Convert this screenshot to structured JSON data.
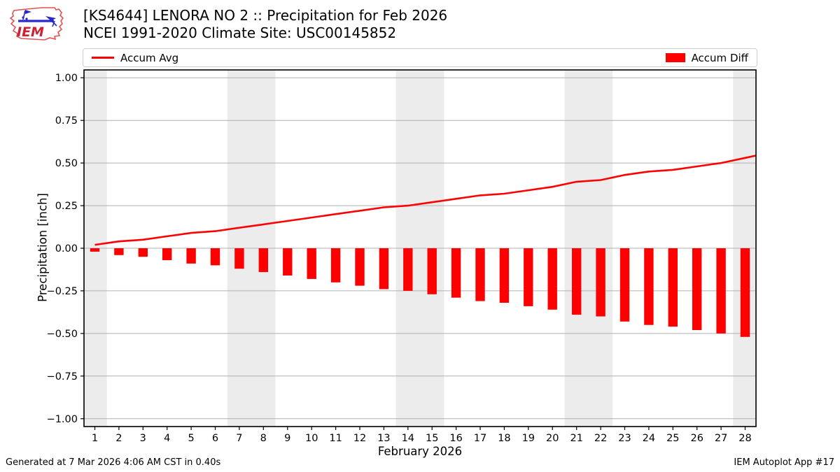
{
  "header": {
    "logo_text": "IEM",
    "title_line1": "[KS4644] LENORA NO 2 :: Precipitation for Feb 2026",
    "title_line2": "NCEI 1991-2020 Climate Site: USC00145852"
  },
  "footer": {
    "generated": "Generated at 7 Mar 2026 4:06 AM CST in 0.40s",
    "app": "IEM Autoplot App #17"
  },
  "colors": {
    "accent_red": "#ff0000",
    "weekend_band": "#ececec",
    "gridline": "#b0b0b0",
    "axis": "#000000",
    "legend_border": "#cccccc",
    "logo_outline": "#e05252",
    "logo_instrument": "#2929c8",
    "logo_text_red": "#cc2233"
  },
  "chart_data": {
    "type": "bar",
    "title": "[KS4644] LENORA NO 2 :: Precipitation for Feb 2026",
    "subtitle": "NCEI 1991-2020 Climate Site: USC00145852",
    "xlabel": "February 2026",
    "ylabel": "Precipitation [inch]",
    "x": [
      1,
      2,
      3,
      4,
      5,
      6,
      7,
      8,
      9,
      10,
      11,
      12,
      13,
      14,
      15,
      16,
      17,
      18,
      19,
      20,
      21,
      22,
      23,
      24,
      25,
      26,
      27,
      28
    ],
    "series": [
      {
        "name": "Accum Avg",
        "type": "line",
        "color": "#ff0000",
        "values": [
          0.02,
          0.04,
          0.05,
          0.07,
          0.09,
          0.1,
          0.12,
          0.14,
          0.16,
          0.18,
          0.2,
          0.22,
          0.24,
          0.25,
          0.27,
          0.29,
          0.31,
          0.32,
          0.34,
          0.36,
          0.39,
          0.4,
          0.43,
          0.45,
          0.46,
          0.48,
          0.5,
          0.53
        ]
      },
      {
        "name": "Accum Diff",
        "type": "bar",
        "color": "#ff0000",
        "values": [
          -0.02,
          -0.04,
          -0.05,
          -0.07,
          -0.09,
          -0.1,
          -0.12,
          -0.14,
          -0.16,
          -0.18,
          -0.2,
          -0.22,
          -0.24,
          -0.25,
          -0.27,
          -0.29,
          -0.31,
          -0.32,
          -0.34,
          -0.36,
          -0.39,
          -0.4,
          -0.43,
          -0.45,
          -0.46,
          -0.48,
          -0.5,
          -0.52
        ]
      }
    ],
    "ylim": [
      -1.046,
      1.046
    ],
    "x_domain": [
      0.55,
      28.45
    ],
    "yticks": [
      1.0,
      0.75,
      0.5,
      0.25,
      0.0,
      -0.25,
      -0.5,
      -0.75,
      -1.0
    ],
    "ytick_labels": [
      "1.00",
      "0.75",
      "0.50",
      "0.25",
      "0.00",
      "−0.25",
      "−0.50",
      "−0.75",
      "−1.00"
    ],
    "grid": "horizontal",
    "legend_position": "top",
    "weekend_bands": [
      [
        0.55,
        1.5
      ],
      [
        6.5,
        8.5
      ],
      [
        13.5,
        15.5
      ],
      [
        20.5,
        22.5
      ],
      [
        27.5,
        28.45
      ]
    ]
  }
}
